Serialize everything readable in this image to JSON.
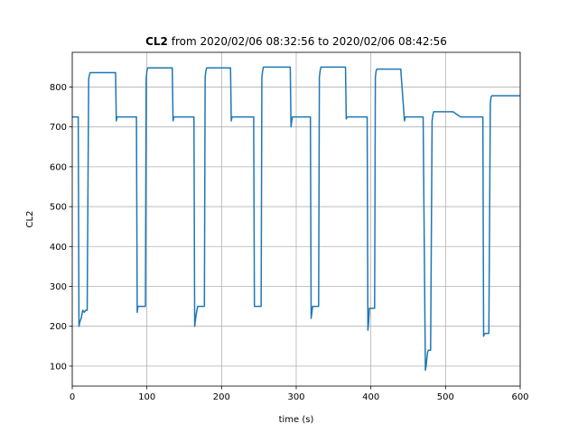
{
  "chart_data": {
    "type": "line",
    "title_bold": "CL2",
    "title_rest": " from 2020/02/06 08:32:56 to 2020/02/06 08:42:56",
    "xlabel": "time (s)",
    "ylabel": "CL2",
    "xlim": [
      0,
      600
    ],
    "ylim": [
      50,
      887
    ],
    "xticks": [
      0,
      100,
      200,
      300,
      400,
      500,
      600
    ],
    "yticks": [
      100,
      200,
      300,
      400,
      500,
      600,
      700,
      800
    ],
    "grid": true,
    "series_color": "#1f77b4",
    "series": [
      {
        "x": [
          0,
          7,
          8,
          9,
          10,
          12,
          14,
          16,
          18,
          20,
          22,
          23,
          24,
          26,
          30,
          40,
          50,
          58,
          59,
          60,
          61,
          62,
          70,
          80,
          84,
          85,
          86,
          87,
          88,
          90,
          95,
          98,
          99,
          100,
          101,
          102,
          110,
          120,
          134,
          135,
          136,
          137,
          140,
          150,
          160,
          162,
          163,
          164,
          165,
          166,
          168,
          170,
          175,
          177,
          178,
          179,
          180,
          181,
          182,
          190,
          200,
          212,
          213,
          214,
          215,
          216,
          220,
          230,
          240,
          242,
          243,
          244,
          245,
          246,
          250,
          253,
          254,
          255,
          256,
          257,
          260,
          270,
          280,
          290,
          292,
          293,
          294,
          295,
          296,
          300,
          310,
          318,
          319,
          320,
          321,
          322,
          325,
          330,
          331,
          332,
          333,
          334,
          340,
          350,
          360,
          366,
          367,
          368,
          369,
          370,
          380,
          394,
          395,
          396,
          397,
          398,
          400,
          405,
          406,
          407,
          408,
          409,
          410,
          420,
          430,
          440,
          445,
          446,
          447,
          448,
          450,
          460,
          470,
          473,
          474,
          475,
          476,
          477,
          478,
          480,
          482,
          483,
          484,
          485,
          486,
          487,
          490,
          500,
          510,
          520,
          521,
          522,
          530,
          540,
          550,
          551,
          552,
          553,
          554,
          556,
          558,
          560,
          561,
          562,
          563,
          564,
          565,
          570,
          580,
          590,
          600
        ],
        "y": [
          725,
          725,
          725,
          200,
          210,
          220,
          240,
          235,
          240,
          240,
          820,
          830,
          836,
          836,
          836,
          836,
          836,
          836,
          715,
          725,
          725,
          725,
          725,
          725,
          725,
          725,
          725,
          235,
          250,
          250,
          250,
          250,
          820,
          840,
          848,
          848,
          848,
          848,
          848,
          715,
          725,
          725,
          725,
          725,
          725,
          725,
          725,
          200,
          215,
          230,
          250,
          250,
          250,
          250,
          825,
          840,
          848,
          848,
          848,
          848,
          848,
          848,
          715,
          725,
          725,
          725,
          725,
          725,
          725,
          725,
          725,
          250,
          250,
          250,
          250,
          250,
          825,
          840,
          850,
          850,
          850,
          850,
          850,
          850,
          850,
          700,
          715,
          725,
          725,
          725,
          725,
          725,
          725,
          220,
          235,
          250,
          250,
          250,
          825,
          840,
          850,
          850,
          850,
          850,
          850,
          850,
          720,
          725,
          725,
          725,
          725,
          725,
          725,
          190,
          210,
          245,
          245,
          245,
          825,
          840,
          845,
          845,
          845,
          845,
          845,
          845,
          715,
          725,
          725,
          725,
          725,
          725,
          725,
          90,
          100,
          120,
          135,
          140,
          140,
          140,
          715,
          730,
          738,
          738,
          738,
          738,
          738,
          738,
          738,
          725,
          725,
          725,
          725,
          725,
          725,
          175,
          180,
          182,
          182,
          182,
          182,
          760,
          775,
          778,
          778,
          778,
          778,
          778,
          778,
          778,
          778
        ]
      }
    ]
  }
}
